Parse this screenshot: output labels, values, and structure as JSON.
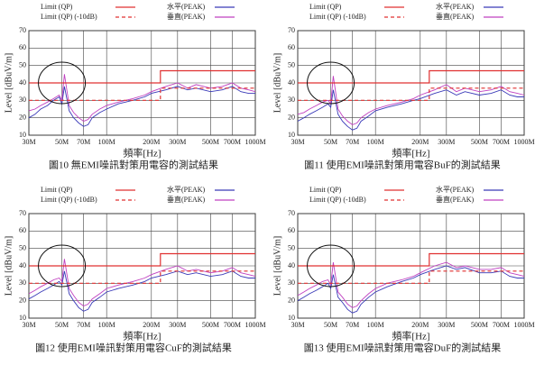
{
  "chart_data": [
    {
      "type": "line",
      "title": "圖10 無EMI噪訊對策用電容的測試結果",
      "xlabel": "頻率[Hz]",
      "ylabel": "Level [dBuV/m]",
      "xscale": "log",
      "grid": true,
      "xlim": [
        30,
        1000
      ],
      "ylim": [
        10,
        70
      ],
      "yticks": [
        10,
        20,
        30,
        40,
        50,
        60,
        70
      ],
      "xticks": [
        {
          "value": 30,
          "label": "30M"
        },
        {
          "value": 50,
          "label": "50M"
        },
        {
          "value": 70,
          "label": "70M"
        },
        {
          "value": 100,
          "label": "100M"
        },
        {
          "value": 200,
          "label": "200M"
        },
        {
          "value": 300,
          "label": "300M"
        },
        {
          "value": 500,
          "label": "500M"
        },
        {
          "value": 700,
          "label": "700M"
        },
        {
          "value": 1000,
          "label": "1000M"
        }
      ],
      "series": [
        {
          "name": "Limit (QP)",
          "color": "#e03030",
          "dashed": false,
          "x": [
            30,
            230,
            230,
            1000
          ],
          "values": [
            40,
            40,
            47,
            47
          ]
        },
        {
          "name": "Limit (QP) (-10dB)",
          "color": "#e03030",
          "dashed": true,
          "x": [
            30,
            230,
            230,
            1000
          ],
          "values": [
            30,
            30,
            37,
            37
          ]
        },
        {
          "name": "水平(PEAK)",
          "color": "#3a3ab8",
          "dashed": false,
          "x": [
            30,
            33,
            36,
            40,
            44,
            48,
            50,
            52,
            56,
            60,
            65,
            70,
            75,
            80,
            90,
            100,
            120,
            150,
            180,
            200,
            250,
            300,
            350,
            400,
            500,
            600,
            700,
            800,
            900,
            1000
          ],
          "values": [
            20,
            22,
            25,
            27,
            30,
            32,
            28,
            38,
            24,
            20,
            17,
            15,
            16,
            20,
            23,
            25,
            28,
            30,
            32,
            34,
            36,
            38,
            36,
            37,
            35,
            36,
            38,
            35,
            34,
            34
          ]
        },
        {
          "name": "垂直(PEAK)",
          "color": "#c040c0",
          "dashed": false,
          "x": [
            30,
            33,
            36,
            40,
            44,
            48,
            50,
            52,
            56,
            60,
            65,
            70,
            75,
            80,
            90,
            100,
            120,
            150,
            180,
            200,
            250,
            300,
            350,
            400,
            500,
            600,
            700,
            800,
            900,
            1000
          ],
          "values": [
            24,
            25,
            27,
            29,
            31,
            33,
            30,
            45,
            27,
            23,
            20,
            18,
            19,
            22,
            25,
            27,
            29,
            31,
            33,
            35,
            38,
            40,
            37,
            39,
            37,
            38,
            40,
            37,
            36,
            35
          ]
        }
      ]
    },
    {
      "type": "line",
      "title": "圖11 使用EMI噪訊對策用電容BuF的測試結果",
      "xlabel": "頻率[Hz]",
      "ylabel": "Level [dBuV/m]",
      "xscale": "log",
      "grid": true,
      "xlim": [
        30,
        1000
      ],
      "ylim": [
        10,
        70
      ],
      "yticks": [
        10,
        20,
        30,
        40,
        50,
        60,
        70
      ],
      "xticks": [
        {
          "value": 30,
          "label": "30M"
        },
        {
          "value": 50,
          "label": "50M"
        },
        {
          "value": 70,
          "label": "70M"
        },
        {
          "value": 100,
          "label": "100M"
        },
        {
          "value": 200,
          "label": "200M"
        },
        {
          "value": 300,
          "label": "300M"
        },
        {
          "value": 500,
          "label": "500M"
        },
        {
          "value": 700,
          "label": "700M"
        },
        {
          "value": 1000,
          "label": "1000M"
        }
      ],
      "series": [
        {
          "name": "Limit (QP)",
          "color": "#e03030",
          "dashed": false,
          "x": [
            30,
            230,
            230,
            1000
          ],
          "values": [
            40,
            40,
            47,
            47
          ]
        },
        {
          "name": "Limit (QP) (-10dB)",
          "color": "#e03030",
          "dashed": true,
          "x": [
            30,
            230,
            230,
            1000
          ],
          "values": [
            30,
            30,
            37,
            37
          ]
        },
        {
          "name": "水平(PEAK)",
          "color": "#3a3ab8",
          "dashed": false,
          "x": [
            30,
            33,
            36,
            40,
            44,
            48,
            50,
            52,
            56,
            60,
            65,
            70,
            75,
            80,
            90,
            100,
            120,
            150,
            180,
            200,
            250,
            300,
            350,
            400,
            500,
            600,
            700,
            800,
            900,
            1000
          ],
          "values": [
            18,
            20,
            22,
            24,
            26,
            28,
            26,
            36,
            22,
            18,
            15,
            13,
            14,
            18,
            21,
            24,
            26,
            28,
            30,
            31,
            34,
            36,
            33,
            35,
            33,
            34,
            36,
            33,
            32,
            32
          ]
        },
        {
          "name": "垂直(PEAK)",
          "color": "#c040c0",
          "dashed": false,
          "x": [
            30,
            33,
            36,
            40,
            44,
            48,
            50,
            52,
            56,
            60,
            65,
            70,
            75,
            80,
            90,
            100,
            120,
            150,
            180,
            200,
            250,
            300,
            350,
            400,
            500,
            600,
            700,
            800,
            900,
            1000
          ],
          "values": [
            22,
            23,
            25,
            27,
            29,
            30,
            28,
            44,
            25,
            21,
            18,
            16,
            17,
            20,
            23,
            25,
            27,
            29,
            31,
            33,
            36,
            39,
            35,
            37,
            35,
            36,
            38,
            35,
            34,
            33
          ]
        }
      ]
    },
    {
      "type": "line",
      "title": "圖12 使用EMI噪訊對策用電容CuF的測試結果",
      "xlabel": "頻率[Hz]",
      "ylabel": "Level [dBuV/m]",
      "xscale": "log",
      "grid": true,
      "xlim": [
        30,
        1000
      ],
      "ylim": [
        10,
        70
      ],
      "yticks": [
        10,
        20,
        30,
        40,
        50,
        60,
        70
      ],
      "xticks": [
        {
          "value": 30,
          "label": "30M"
        },
        {
          "value": 50,
          "label": "50M"
        },
        {
          "value": 70,
          "label": "70M"
        },
        {
          "value": 100,
          "label": "100M"
        },
        {
          "value": 200,
          "label": "200M"
        },
        {
          "value": 300,
          "label": "300M"
        },
        {
          "value": 500,
          "label": "500M"
        },
        {
          "value": 700,
          "label": "700M"
        },
        {
          "value": 1000,
          "label": "1000M"
        }
      ],
      "series": [
        {
          "name": "Limit (QP)",
          "color": "#e03030",
          "dashed": false,
          "x": [
            30,
            230,
            230,
            1000
          ],
          "values": [
            40,
            40,
            47,
            47
          ]
        },
        {
          "name": "Limit (QP) (-10dB)",
          "color": "#e03030",
          "dashed": true,
          "x": [
            30,
            230,
            230,
            1000
          ],
          "values": [
            30,
            30,
            37,
            37
          ]
        },
        {
          "name": "水平(PEAK)",
          "color": "#3a3ab8",
          "dashed": false,
          "x": [
            30,
            33,
            36,
            40,
            44,
            48,
            50,
            52,
            56,
            60,
            65,
            70,
            75,
            80,
            90,
            100,
            120,
            150,
            180,
            200,
            250,
            300,
            350,
            400,
            500,
            600,
            700,
            800,
            900,
            1000
          ],
          "values": [
            21,
            23,
            25,
            27,
            29,
            31,
            29,
            37,
            24,
            20,
            16,
            14,
            15,
            19,
            22,
            25,
            27,
            29,
            31,
            33,
            35,
            37,
            35,
            36,
            34,
            35,
            37,
            34,
            33,
            33
          ]
        },
        {
          "name": "垂直(PEAK)",
          "color": "#c040c0",
          "dashed": false,
          "x": [
            30,
            33,
            36,
            40,
            44,
            48,
            50,
            52,
            56,
            60,
            65,
            70,
            75,
            80,
            90,
            100,
            120,
            150,
            180,
            200,
            250,
            300,
            350,
            400,
            500,
            600,
            700,
            800,
            900,
            1000
          ],
          "values": [
            24,
            26,
            28,
            30,
            32,
            33,
            31,
            44,
            27,
            23,
            19,
            17,
            18,
            21,
            24,
            27,
            29,
            31,
            33,
            35,
            38,
            40,
            37,
            38,
            36,
            37,
            39,
            36,
            35,
            34
          ]
        }
      ]
    },
    {
      "type": "line",
      "title": "圖13 使用EMI噪訊對策用電容DuF的測試結果",
      "xlabel": "頻率[Hz]",
      "ylabel": "Level [dBuV/m]",
      "xscale": "log",
      "grid": true,
      "xlim": [
        30,
        1000
      ],
      "ylim": [
        10,
        70
      ],
      "yticks": [
        10,
        20,
        30,
        40,
        50,
        60,
        70
      ],
      "xticks": [
        {
          "value": 30,
          "label": "30M"
        },
        {
          "value": 50,
          "label": "50M"
        },
        {
          "value": 70,
          "label": "70M"
        },
        {
          "value": 100,
          "label": "100M"
        },
        {
          "value": 200,
          "label": "200M"
        },
        {
          "value": 300,
          "label": "300M"
        },
        {
          "value": 500,
          "label": "500M"
        },
        {
          "value": 700,
          "label": "700M"
        },
        {
          "value": 1000,
          "label": "1000M"
        }
      ],
      "series": [
        {
          "name": "Limit (QP)",
          "color": "#e03030",
          "dashed": false,
          "x": [
            30,
            230,
            230,
            1000
          ],
          "values": [
            40,
            40,
            47,
            47
          ]
        },
        {
          "name": "Limit (QP) (-10dB)",
          "color": "#e03030",
          "dashed": true,
          "x": [
            30,
            230,
            230,
            1000
          ],
          "values": [
            30,
            30,
            37,
            37
          ]
        },
        {
          "name": "水平(PEAK)",
          "color": "#3a3ab8",
          "dashed": false,
          "x": [
            30,
            33,
            36,
            40,
            44,
            48,
            50,
            52,
            56,
            60,
            65,
            70,
            75,
            80,
            90,
            100,
            120,
            150,
            180,
            200,
            250,
            300,
            350,
            400,
            500,
            600,
            700,
            800,
            900,
            1000
          ],
          "values": [
            20,
            22,
            24,
            26,
            28,
            30,
            27,
            35,
            22,
            19,
            15,
            13,
            14,
            18,
            22,
            25,
            28,
            31,
            33,
            35,
            38,
            40,
            38,
            39,
            36,
            36,
            37,
            34,
            33,
            33
          ]
        },
        {
          "name": "垂直(PEAK)",
          "color": "#c040c0",
          "dashed": false,
          "x": [
            30,
            33,
            36,
            40,
            44,
            48,
            50,
            52,
            56,
            60,
            65,
            70,
            75,
            80,
            90,
            100,
            120,
            150,
            180,
            200,
            250,
            300,
            350,
            400,
            500,
            600,
            700,
            800,
            900,
            1000
          ],
          "values": [
            23,
            25,
            27,
            29,
            31,
            32,
            29,
            42,
            25,
            22,
            18,
            16,
            17,
            20,
            24,
            27,
            30,
            32,
            34,
            36,
            40,
            42,
            39,
            40,
            38,
            38,
            39,
            36,
            35,
            34
          ]
        }
      ]
    }
  ]
}
